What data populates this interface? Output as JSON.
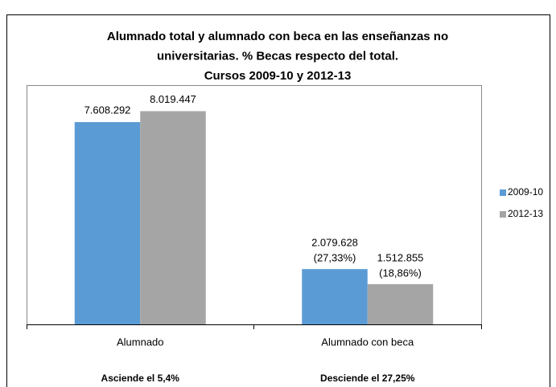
{
  "chart_data": {
    "type": "bar",
    "title": [
      "Alumnado total y alumnado con beca en las enseñanzas no",
      "universitarias. % Becas respecto del total.",
      "Cursos 2009-10 y 2012-13"
    ],
    "categories": [
      "Alumnado",
      "Alumnado con beca"
    ],
    "annotations": [
      "Asciende el 5,4%",
      "Desciende el 27,25%"
    ],
    "series": [
      {
        "name": "2009-10",
        "color": "#5b9bd5",
        "values": [
          7608292,
          2079628
        ],
        "value_labels": [
          "7.608.292",
          "2.079.628"
        ],
        "shares": [
          null,
          "(27,33%)"
        ]
      },
      {
        "name": "2012-13",
        "color": "#a5a5a5",
        "values": [
          8019447,
          1512855
        ],
        "value_labels": [
          "8.019.447",
          "1.512.855"
        ],
        "shares": [
          null,
          "(18,86%)"
        ]
      }
    ],
    "ylim": [
      0,
      9000000
    ],
    "legend": "right"
  }
}
